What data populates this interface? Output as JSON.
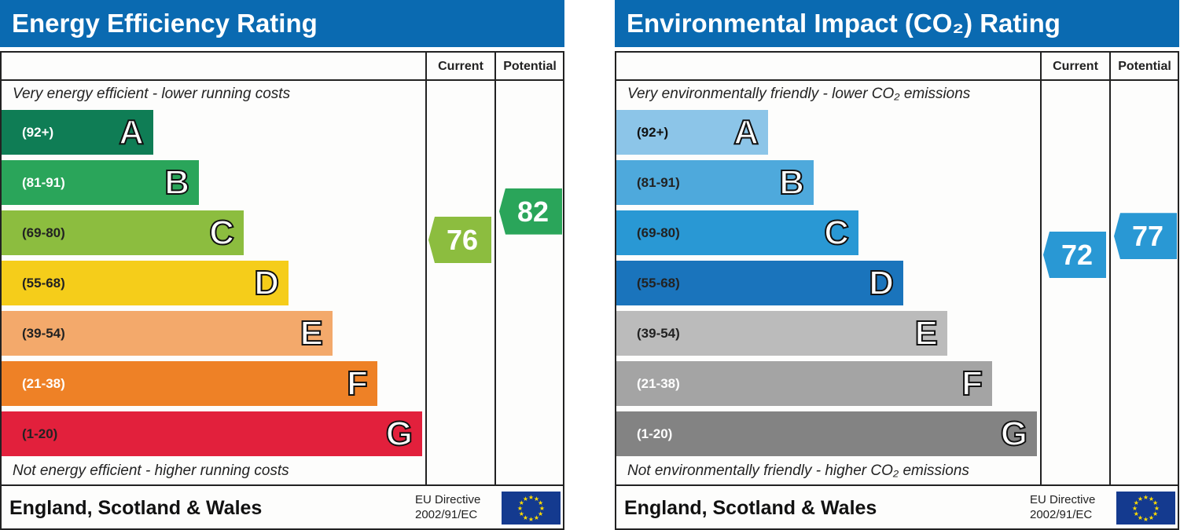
{
  "panels": [
    {
      "title": "Energy Efficiency Rating",
      "col_current": "Current",
      "col_potential": "Potential",
      "top_note": "Very energy efficient - lower running costs",
      "bottom_note": "Not energy efficient - higher running costs",
      "region": "England, Scotland & Wales",
      "directive_line1": "EU Directive",
      "directive_line2": "2002/91/EC",
      "bands": [
        {
          "letter": "A",
          "range": "(92+)",
          "min": 92,
          "max": 100,
          "color": "#0f7d55",
          "text_color": "#ffffff"
        },
        {
          "letter": "B",
          "range": "(81-91)",
          "min": 81,
          "max": 91,
          "color": "#2aa55a",
          "text_color": "#ffffff"
        },
        {
          "letter": "C",
          "range": "(69-80)",
          "min": 69,
          "max": 80,
          "color": "#8cbd3f",
          "text_color": "#222222"
        },
        {
          "letter": "D",
          "range": "(55-68)",
          "min": 55,
          "max": 68,
          "color": "#f5cd1a",
          "text_color": "#222222"
        },
        {
          "letter": "E",
          "range": "(39-54)",
          "min": 39,
          "max": 54,
          "color": "#f3a96b",
          "text_color": "#222222"
        },
        {
          "letter": "F",
          "range": "(21-38)",
          "min": 21,
          "max": 38,
          "color": "#ee8126",
          "text_color": "#ffffff"
        },
        {
          "letter": "G",
          "range": "(1-20)",
          "min": 1,
          "max": 20,
          "color": "#e2203c",
          "text_color": "#222222"
        }
      ],
      "current": {
        "value": 76,
        "label": "76",
        "color": "#8cbd3f"
      },
      "potential": {
        "value": 82,
        "label": "82",
        "color": "#2aa55a"
      }
    },
    {
      "title": "Environmental Impact (CO₂) Rating",
      "col_current": "Current",
      "col_potential": "Potential",
      "top_note": "Very environmentally friendly - lower CO₂ emissions",
      "bottom_note": "Not environmentally friendly - higher CO₂ emissions",
      "region": "England, Scotland & Wales",
      "directive_line1": "EU Directive",
      "directive_line2": "2002/91/EC",
      "bands": [
        {
          "letter": "A",
          "range": "(92+)",
          "min": 92,
          "max": 100,
          "color": "#8cc5e8",
          "text_color": "#111111"
        },
        {
          "letter": "B",
          "range": "(81-91)",
          "min": 81,
          "max": 91,
          "color": "#4ea9dc",
          "text_color": "#222222"
        },
        {
          "letter": "C",
          "range": "(69-80)",
          "min": 69,
          "max": 80,
          "color": "#2998d4",
          "text_color": "#222222"
        },
        {
          "letter": "D",
          "range": "(55-68)",
          "min": 55,
          "max": 68,
          "color": "#1a74bc",
          "text_color": "#222222"
        },
        {
          "letter": "E",
          "range": "(39-54)",
          "min": 39,
          "max": 54,
          "color": "#bbbbbb",
          "text_color": "#222222"
        },
        {
          "letter": "F",
          "range": "(21-38)",
          "min": 21,
          "max": 38,
          "color": "#a4a4a4",
          "text_color": "#ffffff"
        },
        {
          "letter": "G",
          "range": "(1-20)",
          "min": 1,
          "max": 20,
          "color": "#838383",
          "text_color": "#ffffff"
        }
      ],
      "current": {
        "value": 72,
        "label": "72",
        "color": "#2998d4"
      },
      "potential": {
        "value": 77,
        "label": "77",
        "color": "#2998d4"
      }
    }
  ],
  "chart_data": [
    {
      "type": "bar",
      "title": "Energy Efficiency Rating",
      "categories": [
        "A",
        "B",
        "C",
        "D",
        "E",
        "F",
        "G"
      ],
      "ranges": [
        "(92+)",
        "(81-91)",
        "(69-80)",
        "(55-68)",
        "(39-54)",
        "(21-38)",
        "(1-20)"
      ],
      "current": 76,
      "potential": 82
    },
    {
      "type": "bar",
      "title": "Environmental Impact (CO₂) Rating",
      "categories": [
        "A",
        "B",
        "C",
        "D",
        "E",
        "F",
        "G"
      ],
      "ranges": [
        "(92+)",
        "(81-91)",
        "(69-80)",
        "(55-68)",
        "(39-54)",
        "(21-38)",
        "(1-20)"
      ],
      "current": 72,
      "potential": 77
    }
  ]
}
